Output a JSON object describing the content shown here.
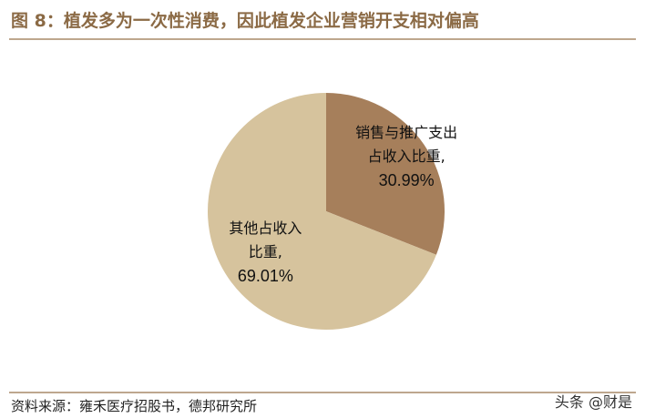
{
  "title": "图 8：植发多为一次性消费，因此植发企业营销开支相对偏高",
  "chart_data": {
    "type": "pie",
    "categories": [
      "销售与推广支出占收入比重,",
      "其他占收入比重,"
    ],
    "values": [
      30.99,
      69.01
    ],
    "value_labels": [
      "30.99%",
      "69.01%"
    ],
    "colors": [
      "#a67f5b",
      "#d6c39d"
    ]
  },
  "source": "资料来源：雍禾医疗招股书，德邦研究所",
  "watermark": "头条 @财是"
}
